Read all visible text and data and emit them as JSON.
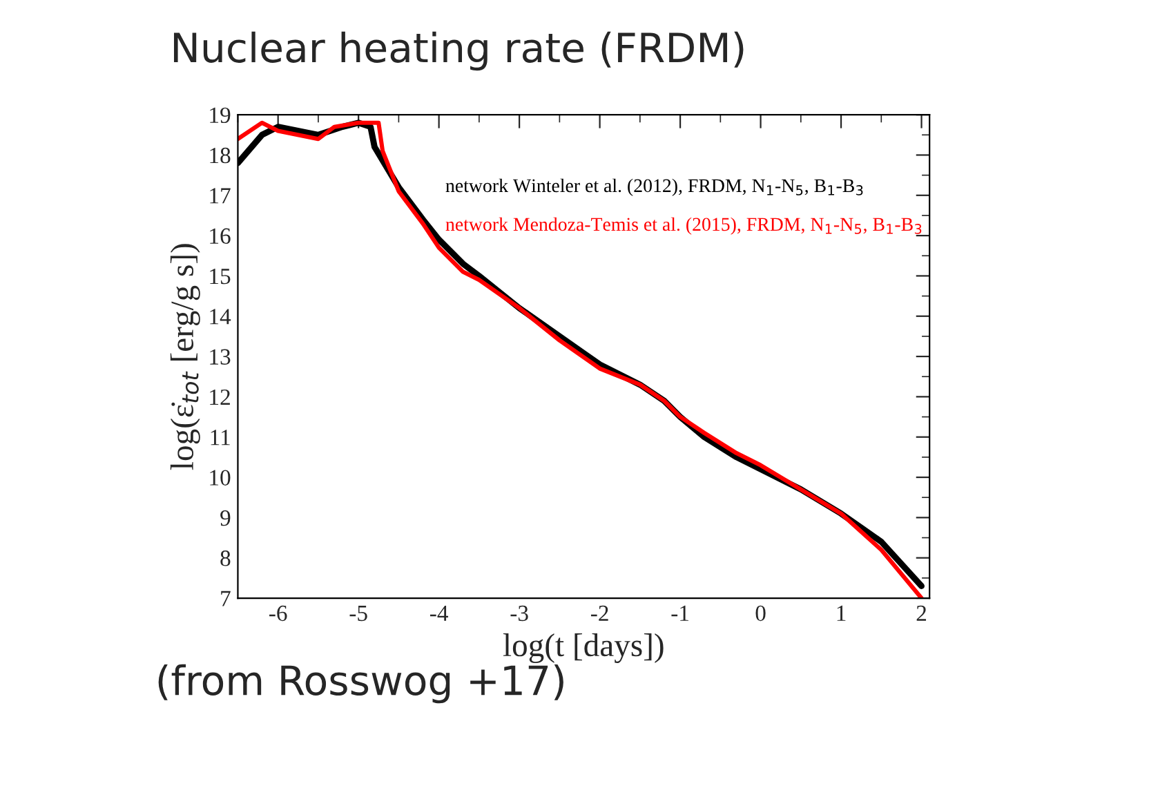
{
  "chart_data": {
    "type": "line",
    "title": "Nuclear heating rate (FRDM)",
    "xlabel": "log(t [days])",
    "ylabel": "log(ε̇$_{tot}$ [erg/g s])",
    "xlim": [
      -6.5,
      2.1
    ],
    "ylim": [
      7,
      19
    ],
    "xticks": [
      -6,
      -5,
      -4,
      -3,
      -2,
      -1,
      0,
      1,
      2
    ],
    "yticks": [
      7,
      8,
      9,
      10,
      11,
      12,
      13,
      14,
      15,
      16,
      17,
      18,
      19
    ],
    "grid": false,
    "legend": false,
    "series": [
      {
        "name": "network Winteler et al. (2012), FRDM, N$_{1}$-N$_{5}$, B$_{1}$-B$_{3}$",
        "color": "#000000",
        "x": [
          -6.5,
          -6.2,
          -6,
          -5.5,
          -5.2,
          -5,
          -4.85,
          -4.8,
          -4.5,
          -4.2,
          -4,
          -3.7,
          -3.5,
          -3,
          -2.5,
          -2,
          -1.5,
          -1.2,
          -1,
          -0.7,
          -0.3,
          0,
          0.5,
          1,
          1.5,
          2
        ],
        "values": [
          17.8,
          18.5,
          18.7,
          18.5,
          18.7,
          18.8,
          18.7,
          18.2,
          17.2,
          16.4,
          15.9,
          15.3,
          15.0,
          14.2,
          13.5,
          12.8,
          12.3,
          11.9,
          11.5,
          11.0,
          10.5,
          10.2,
          9.7,
          9.1,
          8.4,
          7.3
        ]
      },
      {
        "name": "network Mendoza-Temis et al. (2015), FRDM, N$_{1}$-N$_{5}$, B$_{1}$-B$_{3}$",
        "color": "#ff0000",
        "x": [
          -6.5,
          -6.2,
          -6,
          -5.5,
          -5.3,
          -5,
          -4.75,
          -4.7,
          -4.5,
          -4.2,
          -4,
          -3.7,
          -3.5,
          -3,
          -2.5,
          -2,
          -1.5,
          -1.2,
          -1,
          -0.7,
          -0.3,
          0,
          0.5,
          1,
          1.5,
          2
        ],
        "values": [
          18.4,
          18.8,
          18.6,
          18.4,
          18.7,
          18.8,
          18.8,
          18.1,
          17.1,
          16.3,
          15.7,
          15.1,
          14.9,
          14.2,
          13.4,
          12.7,
          12.3,
          11.9,
          11.5,
          11.1,
          10.6,
          10.3,
          9.7,
          9.1,
          8.2,
          7.0
        ]
      }
    ],
    "annotations": [
      "(from Rosswog +17)"
    ]
  }
}
